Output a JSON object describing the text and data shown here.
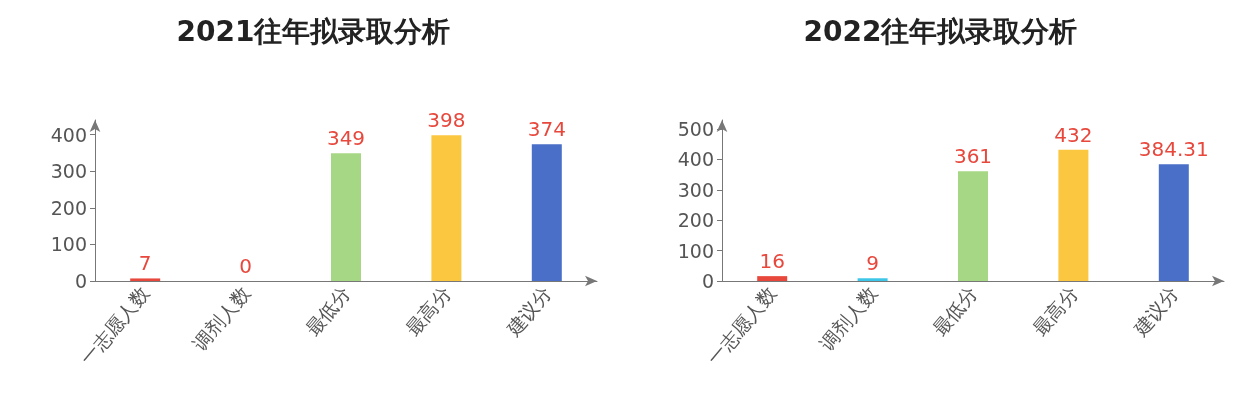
{
  "chart_data": [
    {
      "type": "bar",
      "title": "2021往年拟录取分析",
      "categories": [
        "一志愿人数",
        "调剂人数",
        "最低分",
        "最高分",
        "建议分"
      ],
      "values": [
        7,
        0,
        349,
        398,
        374
      ],
      "colors": [
        "#e8473c",
        "#3ec6e8",
        "#a6d785",
        "#fbc740",
        "#4a6fc9"
      ],
      "ylim": [
        0,
        440
      ],
      "yticks": [
        0,
        100,
        200,
        300,
        400
      ],
      "grid": false,
      "data_labels": true
    },
    {
      "type": "bar",
      "title": "2022往年拟录取分析",
      "categories": [
        "一志愿人数",
        "调剂人数",
        "最低分",
        "最高分",
        "建议分"
      ],
      "values": [
        16,
        9,
        361,
        432,
        384.31
      ],
      "colors": [
        "#e8473c",
        "#3ec6e8",
        "#a6d785",
        "#fbc740",
        "#4a6fc9"
      ],
      "ylim": [
        0,
        530
      ],
      "yticks": [
        0,
        100,
        200,
        300,
        400,
        500
      ],
      "grid": false,
      "data_labels": true
    }
  ]
}
